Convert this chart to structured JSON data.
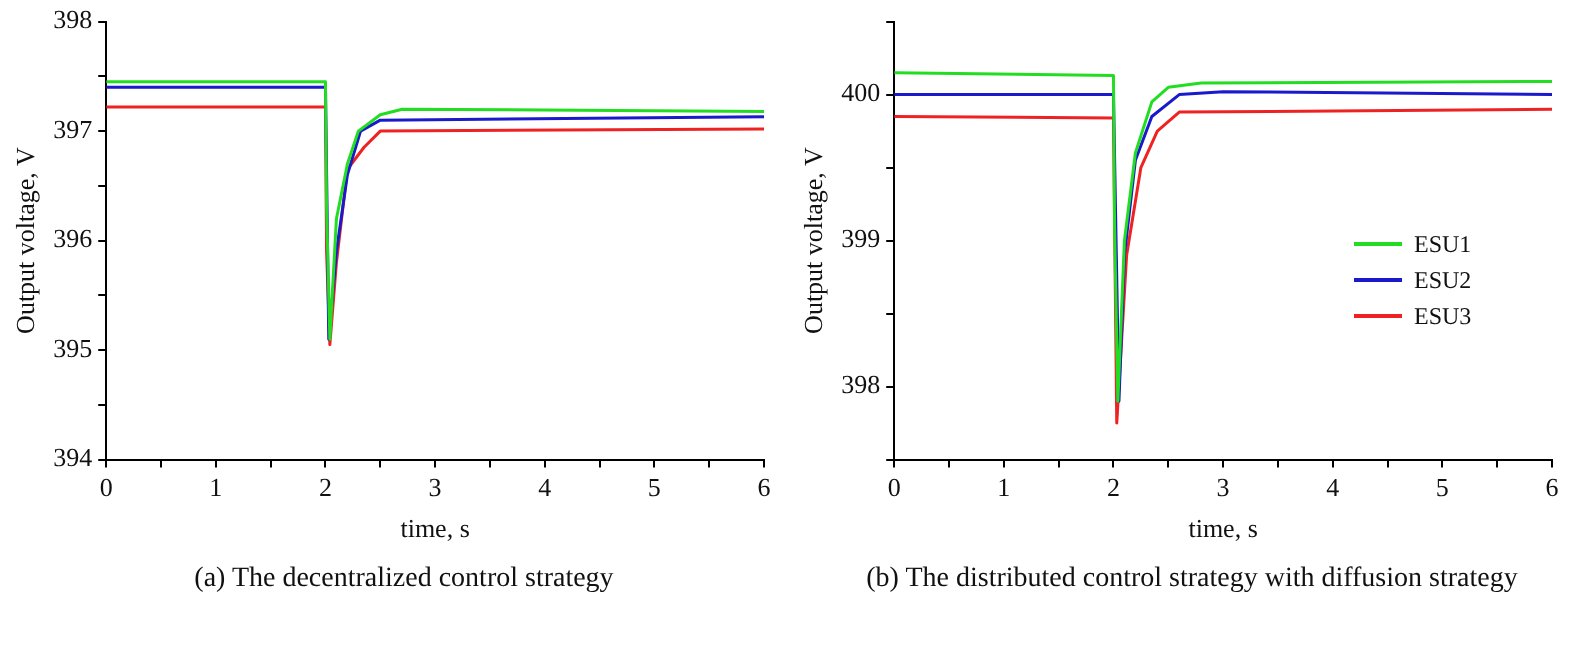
{
  "chart_data": [
    {
      "type": "line",
      "xlabel": "time, s",
      "ylabel": "Output voltage, V",
      "annotations": [
        "(a) The decentralized control strategy"
      ],
      "xlim": [
        0,
        6
      ],
      "ylim": [
        394,
        398
      ],
      "xticks": [
        0,
        {
          "value": 0.5,
          "label": null
        },
        1,
        {
          "value": 1.5,
          "label": null
        },
        2,
        {
          "value": 2.5,
          "label": null
        },
        3,
        {
          "value": 3.5,
          "label": null
        },
        4,
        {
          "value": 4.5,
          "label": null
        },
        5,
        {
          "value": 5.5,
          "label": null
        },
        6
      ],
      "yticks": [
        394,
        {
          "value": 394.5,
          "label": null
        },
        395,
        {
          "value": 395.5,
          "label": null
        },
        396,
        {
          "value": 396.5,
          "label": null
        },
        397,
        {
          "value": 397.5,
          "label": null
        },
        398
      ],
      "grid": false,
      "legend": false,
      "marker": "none",
      "line_style": "solid",
      "series": [
        {
          "color": "#22dd22",
          "x": [
            0,
            2.0,
            2.01,
            2.04,
            2.1,
            2.2,
            2.3,
            2.5,
            2.7,
            6
          ],
          "values": [
            397.45,
            397.45,
            396.3,
            395.1,
            396.2,
            396.7,
            397.0,
            397.15,
            397.2,
            397.18
          ]
        },
        {
          "color": "#1a1acc",
          "x": [
            0,
            2.0,
            2.03,
            2.1,
            2.2,
            2.32,
            2.5,
            6
          ],
          "values": [
            397.4,
            397.4,
            395.1,
            395.9,
            396.6,
            397.0,
            397.1,
            397.13
          ]
        },
        {
          "color": "#ee2222",
          "x": [
            0,
            2.0,
            2.01,
            2.04,
            2.1,
            2.2,
            2.35,
            2.5,
            6
          ],
          "values": [
            397.22,
            397.22,
            395.9,
            395.05,
            395.8,
            396.65,
            396.85,
            397.0,
            397.02
          ]
        }
      ]
    },
    {
      "type": "line",
      "xlabel": "time, s",
      "ylabel": "Output voltage, V",
      "annotations": [
        "(b) The distributed control strategy with diffusion strategy"
      ],
      "xlim": [
        0,
        6
      ],
      "ylim": [
        397.5,
        400.5
      ],
      "xticks": [
        0,
        {
          "value": 0.5,
          "label": null
        },
        1,
        {
          "value": 1.5,
          "label": null
        },
        2,
        {
          "value": 2.5,
          "label": null
        },
        3,
        {
          "value": 3.5,
          "label": null
        },
        4,
        {
          "value": 4.5,
          "label": null
        },
        5,
        {
          "value": 5.5,
          "label": null
        },
        6
      ],
      "yticks": [
        {
          "value": 397.5,
          "label": null
        },
        398,
        {
          "value": 398.5,
          "label": null
        },
        399,
        {
          "value": 399.5,
          "label": null
        },
        400,
        {
          "value": 400.5,
          "label": null
        }
      ],
      "grid": false,
      "legend": "right",
      "marker": "none",
      "line_style": "solid",
      "series": [
        {
          "name": "ESU1",
          "color": "#22dd22",
          "x": [
            0,
            2.0,
            2.01,
            2.04,
            2.1,
            2.2,
            2.35,
            2.5,
            2.8,
            6
          ],
          "values": [
            400.15,
            400.13,
            399.1,
            397.9,
            399.0,
            399.6,
            399.95,
            400.05,
            400.08,
            400.09
          ]
        },
        {
          "name": "ESU2",
          "color": "#1a1acc",
          "x": [
            0,
            2.0,
            2.05,
            2.1,
            2.2,
            2.35,
            2.6,
            3,
            6
          ],
          "values": [
            400.0,
            400.0,
            397.9,
            398.9,
            399.55,
            399.85,
            400.0,
            400.02,
            400.0
          ]
        },
        {
          "name": "ESU3",
          "color": "#ee2222",
          "x": [
            0,
            2.0,
            2.03,
            2.12,
            2.25,
            2.4,
            2.6,
            6
          ],
          "values": [
            399.85,
            399.84,
            397.75,
            398.9,
            399.5,
            399.75,
            399.88,
            399.9
          ]
        }
      ]
    }
  ]
}
